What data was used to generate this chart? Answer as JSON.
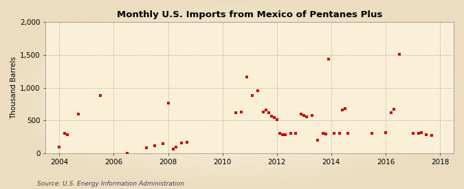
{
  "title": "U.S. Imports from Mexico of Pentanes Plus",
  "ylabel": "Thousand Barrels",
  "source": "Source: U.S. Energy Information Administration",
  "background_color": "#f0deb0",
  "plot_background_color": "#faf0d8",
  "marker_color": "#cc0000",
  "marker_size": 12,
  "xlim": [
    2003.5,
    2018.5
  ],
  "ylim": [
    0,
    2000
  ],
  "yticks": [
    0,
    500,
    1000,
    1500,
    2000
  ],
  "xticks": [
    2004,
    2006,
    2008,
    2010,
    2012,
    2014,
    2016,
    2018
  ],
  "data_points": [
    [
      2004.0,
      100
    ],
    [
      2004.2,
      300
    ],
    [
      2004.3,
      280
    ],
    [
      2004.7,
      600
    ],
    [
      2005.5,
      880
    ],
    [
      2006.5,
      5
    ],
    [
      2007.2,
      80
    ],
    [
      2007.5,
      120
    ],
    [
      2007.8,
      150
    ],
    [
      2008.0,
      760
    ],
    [
      2008.2,
      60
    ],
    [
      2008.3,
      100
    ],
    [
      2008.5,
      160
    ],
    [
      2008.7,
      170
    ],
    [
      2010.5,
      620
    ],
    [
      2010.7,
      630
    ],
    [
      2010.9,
      1160
    ],
    [
      2011.1,
      880
    ],
    [
      2011.3,
      950
    ],
    [
      2011.5,
      630
    ],
    [
      2011.6,
      660
    ],
    [
      2011.7,
      620
    ],
    [
      2011.8,
      570
    ],
    [
      2011.9,
      550
    ],
    [
      2012.0,
      510
    ],
    [
      2012.1,
      300
    ],
    [
      2012.2,
      280
    ],
    [
      2012.3,
      280
    ],
    [
      2012.5,
      300
    ],
    [
      2012.7,
      300
    ],
    [
      2012.9,
      600
    ],
    [
      2013.0,
      580
    ],
    [
      2013.1,
      560
    ],
    [
      2013.3,
      580
    ],
    [
      2013.5,
      200
    ],
    [
      2013.7,
      300
    ],
    [
      2013.8,
      290
    ],
    [
      2013.9,
      1430
    ],
    [
      2014.1,
      300
    ],
    [
      2014.3,
      300
    ],
    [
      2014.4,
      660
    ],
    [
      2014.5,
      680
    ],
    [
      2014.6,
      300
    ],
    [
      2015.5,
      300
    ],
    [
      2016.0,
      310
    ],
    [
      2016.2,
      620
    ],
    [
      2016.3,
      670
    ],
    [
      2016.5,
      1510
    ],
    [
      2017.0,
      300
    ],
    [
      2017.2,
      300
    ],
    [
      2017.3,
      310
    ],
    [
      2017.5,
      280
    ],
    [
      2017.7,
      270
    ]
  ]
}
